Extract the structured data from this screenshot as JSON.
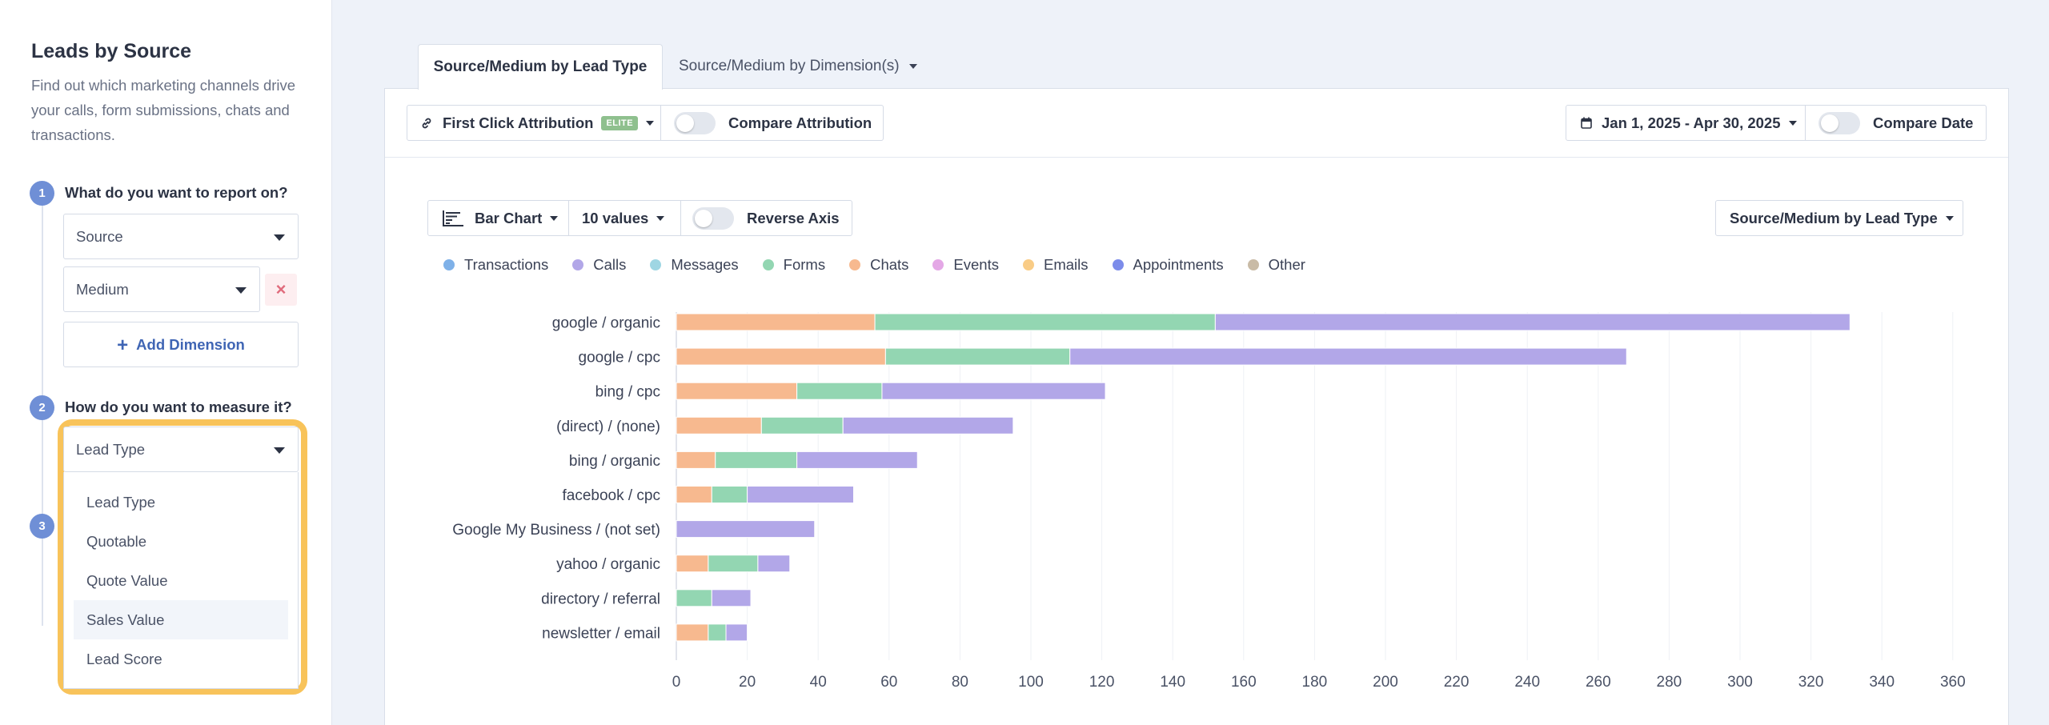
{
  "sidebar": {
    "title": "Leads by Source",
    "description": "Find out which marketing channels drive your calls, form submissions, chats and transactions.",
    "steps": [
      {
        "number": "1",
        "label": "What do you want to report on?"
      },
      {
        "number": "2",
        "label": "How do you want to measure it?"
      },
      {
        "number": "3",
        "label": ""
      }
    ],
    "dimension1": "Source",
    "dimension2": "Medium",
    "remove_icon": "×",
    "add_dimension_plus": "+",
    "add_dimension_label": "Add Dimension",
    "measure_selected": "Lead Type",
    "measure_options": [
      "Lead Type",
      "Quotable",
      "Quote Value",
      "Sales Value",
      "Lead Score"
    ],
    "measure_hovered_index": 3
  },
  "tabs": [
    {
      "label": "Source/Medium by Lead Type",
      "active": true
    },
    {
      "label": "Source/Medium by Dimension(s)",
      "active": false
    }
  ],
  "toolbar": {
    "attribution_label": "First Click Attribution",
    "attribution_badge": "ELITE",
    "compare_attribution_label": "Compare Attribution",
    "date_range": "Jan 1, 2025 - Apr 30, 2025",
    "compare_date_label": "Compare Date"
  },
  "chart_controls": {
    "chart_type": "Bar Chart",
    "values_count": "10 values",
    "reverse_axis_label": "Reverse Axis",
    "report_selector": "Source/Medium by Lead Type"
  },
  "chart_data": {
    "type": "bar",
    "orientation": "horizontal",
    "stacked": true,
    "categories": [
      "google / organic",
      "google / cpc",
      "bing / cpc",
      "(direct) / (none)",
      "bing / organic",
      "facebook / cpc",
      "Google My Business / (not set)",
      "yahoo / organic",
      "directory / referral",
      "newsletter / email"
    ],
    "series": [
      {
        "name": "Transactions",
        "color": "#7fb1e8",
        "values": [
          0,
          0,
          0,
          0,
          0,
          0,
          0,
          0,
          0,
          0
        ]
      },
      {
        "name": "Calls",
        "color": "#b2a7e8",
        "values": [
          179,
          157,
          63,
          48,
          34,
          30,
          39,
          9,
          11,
          6
        ]
      },
      {
        "name": "Messages",
        "color": "#9fd6e3",
        "values": [
          0,
          0,
          0,
          0,
          0,
          0,
          0,
          0,
          0,
          0
        ]
      },
      {
        "name": "Forms",
        "color": "#93d6b2",
        "values": [
          96,
          52,
          24,
          23,
          23,
          10,
          0,
          14,
          10,
          5
        ]
      },
      {
        "name": "Chats",
        "color": "#f7b98f",
        "values": [
          56,
          59,
          34,
          24,
          11,
          10,
          0,
          9,
          0,
          9
        ]
      },
      {
        "name": "Events",
        "color": "#e4a8e6",
        "values": [
          0,
          0,
          0,
          0,
          0,
          0,
          0,
          0,
          0,
          0
        ]
      },
      {
        "name": "Emails",
        "color": "#f9cc86",
        "values": [
          0,
          0,
          0,
          0,
          0,
          0,
          0,
          0,
          0,
          0
        ]
      },
      {
        "name": "Appointments",
        "color": "#7c8cea",
        "values": [
          0,
          0,
          0,
          0,
          0,
          0,
          0,
          0,
          0,
          0
        ]
      },
      {
        "name": "Other",
        "color": "#c9bba6",
        "values": [
          0,
          0,
          0,
          0,
          0,
          0,
          0,
          0,
          0,
          0
        ]
      }
    ],
    "stack_order": [
      "Chats",
      "Forms",
      "Calls"
    ],
    "xlim": [
      0,
      360
    ],
    "x_ticks": [
      0,
      20,
      40,
      60,
      80,
      100,
      120,
      140,
      160,
      180,
      200,
      220,
      240,
      260,
      280,
      300,
      320,
      340,
      360
    ],
    "grid": true,
    "legend_position": "top-left"
  }
}
